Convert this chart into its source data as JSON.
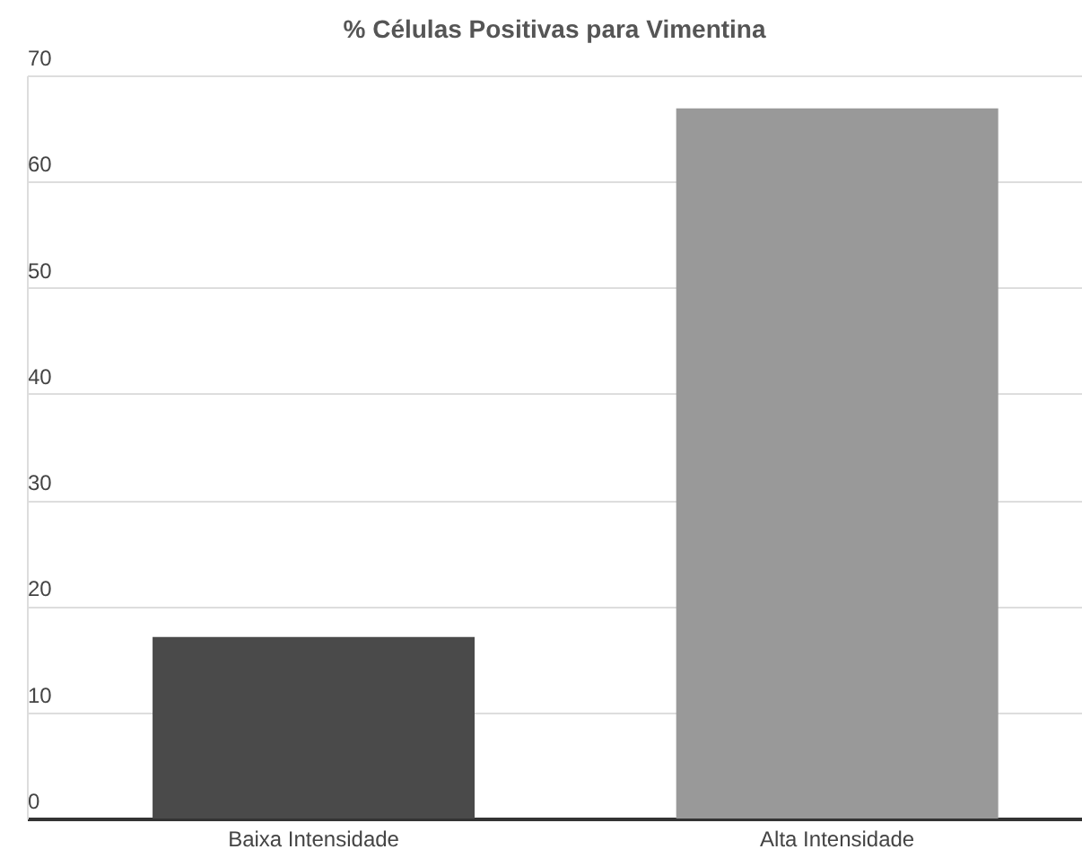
{
  "chart_data": {
    "type": "bar",
    "title": "% Células Positivas para Vimentina",
    "categories": [
      "Baixa Intensidade",
      "Alta Intensidade"
    ],
    "values": [
      17.1,
      66.9
    ],
    "colors": [
      "#4a4a4a",
      "#999999"
    ],
    "ylim": [
      0,
      70
    ],
    "yticks": [
      0,
      10,
      20,
      30,
      40,
      50,
      60,
      70
    ],
    "grid": "y"
  }
}
